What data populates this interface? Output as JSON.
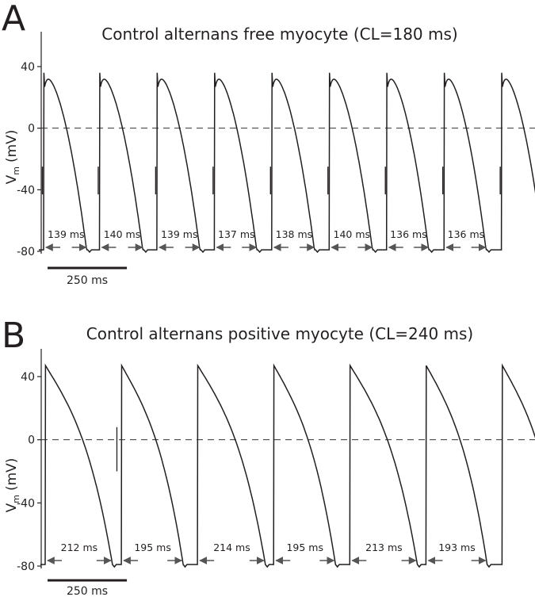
{
  "chart_data": [
    {
      "type": "line",
      "panel": "A",
      "title": "Control alternans free myocyte (CL=180 ms)",
      "ylabel": "V",
      "ylabel_sub": "m",
      "ylabel_unit": "(mV)",
      "yticks": [
        "40",
        "0",
        "-40",
        "-80"
      ],
      "ylim": [
        -82,
        50
      ],
      "time_span_ms": 1510,
      "cycle_length_ms": 180,
      "upstroke_times_ms": [
        0,
        176,
        357,
        538,
        719,
        900,
        1081,
        1262,
        1443
      ],
      "peak_mV": 36,
      "rest_mV": -79,
      "zero_line_mV": 0,
      "apd_ms": [
        139,
        140,
        139,
        137,
        138,
        140,
        136,
        136
      ],
      "apd_labels": [
        "139 ms",
        "140 ms",
        "139 ms",
        "137 ms",
        "138 ms",
        "140 ms",
        "136 ms",
        "136 ms"
      ],
      "scale_bar": "250 ms",
      "scale_bar_ms": 250
    },
    {
      "type": "line",
      "panel": "B",
      "title": "Control alternans positive myocyte (CL=240 ms)",
      "ylabel": "V",
      "ylabel_sub": "m",
      "ylabel_unit": "(mV)",
      "yticks": [
        "40",
        "0",
        "-40",
        "-80"
      ],
      "ylim": [
        -82,
        52
      ],
      "time_span_ms": 1510,
      "cycle_length_ms": 240,
      "upstroke_times_ms": [
        0,
        240,
        480,
        720,
        960,
        1200,
        1440
      ],
      "peak_mV": 47,
      "rest_mV": -79,
      "zero_line_mV": 0,
      "apd_ms": [
        212,
        195,
        214,
        195,
        213,
        193
      ],
      "apd_labels": [
        "212 ms",
        "195 ms",
        "214 ms",
        "195 ms",
        "213 ms",
        "193 ms"
      ],
      "scale_bar": "250 ms",
      "scale_bar_ms": 250
    }
  ]
}
